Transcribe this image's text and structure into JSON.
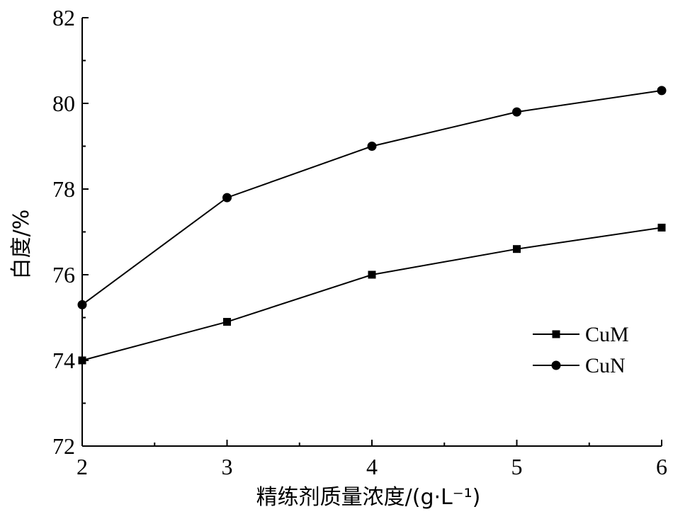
{
  "chart_data": {
    "type": "line",
    "xlabel": "精练剂质量浓度/(g·L⁻¹)",
    "ylabel": "白度/%",
    "x": [
      2,
      3,
      4,
      5,
      6
    ],
    "xlim": [
      2,
      6
    ],
    "ylim": [
      72,
      82
    ],
    "xticks": [
      2,
      3,
      4,
      5,
      6
    ],
    "xticks_minor_step": 0.5,
    "yticks": [
      72,
      74,
      76,
      78,
      80,
      82
    ],
    "yticks_minor_step": 1,
    "grid": false,
    "legend_position": "right",
    "series": [
      {
        "name": "CuM",
        "marker": "square",
        "color": "#000000",
        "values": [
          74.0,
          74.9,
          76.0,
          76.6,
          77.1
        ]
      },
      {
        "name": "CuN",
        "marker": "circle",
        "color": "#000000",
        "values": [
          75.3,
          77.8,
          79.0,
          79.8,
          80.3
        ]
      }
    ]
  }
}
